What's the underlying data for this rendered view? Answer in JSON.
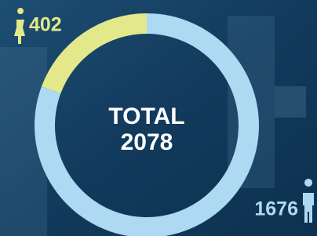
{
  "chart_data": {
    "type": "donut",
    "title": "TOTAL",
    "total": 2078,
    "values": [
      1676,
      402
    ],
    "colors": [
      "#aed9f2",
      "#e3e88a"
    ]
  }
}
